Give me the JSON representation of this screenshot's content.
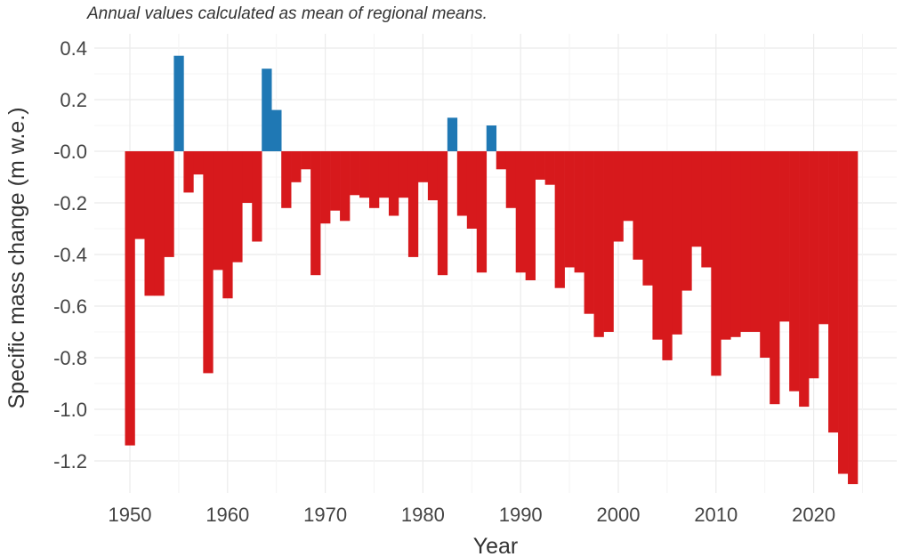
{
  "chart_data": {
    "type": "bar",
    "title": "",
    "subtitle": "Annual values calculated as mean of regional means.",
    "xlabel": "Year",
    "ylabel": "Specific mass change (m w.e.)",
    "xlim": [
      1948,
      2026
    ],
    "ylim": [
      -1.32,
      0.46
    ],
    "xticks": [
      1950,
      1960,
      1970,
      1980,
      1990,
      2000,
      2010,
      2020
    ],
    "yticks": [
      0.4,
      0.2,
      0.0,
      -0.2,
      -0.4,
      -0.6,
      -0.8,
      -1.0,
      -1.2
    ],
    "ytick_labels": [
      "0.4",
      "0.2",
      "-0.0",
      "-0.2",
      "-0.4",
      "-0.6",
      "-0.8",
      "-1.0",
      "-1.2"
    ],
    "grid": true,
    "colors": {
      "positive": "#1f78b4",
      "negative": "#d7191c",
      "grid": "#ebebeb"
    },
    "x": [
      1950,
      1951,
      1952,
      1953,
      1954,
      1955,
      1956,
      1957,
      1958,
      1959,
      1960,
      1961,
      1962,
      1963,
      1964,
      1965,
      1966,
      1967,
      1968,
      1969,
      1970,
      1971,
      1972,
      1973,
      1974,
      1975,
      1976,
      1977,
      1978,
      1979,
      1980,
      1981,
      1982,
      1983,
      1984,
      1985,
      1986,
      1987,
      1988,
      1989,
      1990,
      1991,
      1992,
      1993,
      1994,
      1995,
      1996,
      1997,
      1998,
      1999,
      2000,
      2001,
      2002,
      2003,
      2004,
      2005,
      2006,
      2007,
      2008,
      2009,
      2010,
      2011,
      2012,
      2013,
      2014,
      2015,
      2016,
      2017,
      2018,
      2019,
      2020,
      2021,
      2022,
      2023,
      2024
    ],
    "values": [
      -1.14,
      -0.34,
      -0.56,
      -0.56,
      -0.41,
      0.37,
      -0.16,
      -0.09,
      -0.86,
      -0.46,
      -0.57,
      -0.43,
      -0.2,
      -0.35,
      0.32,
      0.16,
      -0.22,
      -0.12,
      -0.07,
      -0.48,
      -0.28,
      -0.23,
      -0.27,
      -0.17,
      -0.18,
      -0.22,
      -0.18,
      -0.25,
      -0.18,
      -0.41,
      -0.12,
      -0.19,
      -0.48,
      0.13,
      -0.25,
      -0.3,
      -0.47,
      0.1,
      -0.07,
      -0.22,
      -0.47,
      -0.5,
      -0.11,
      -0.13,
      -0.53,
      -0.45,
      -0.47,
      -0.63,
      -0.72,
      -0.7,
      -0.35,
      -0.27,
      -0.42,
      -0.52,
      -0.73,
      -0.81,
      -0.71,
      -0.54,
      -0.37,
      -0.45,
      -0.87,
      -0.73,
      -0.72,
      -0.7,
      -0.7,
      -0.8,
      -0.98,
      -0.66,
      -0.93,
      -0.99,
      -0.88,
      -0.67,
      -1.09,
      -1.25,
      -1.29
    ]
  }
}
